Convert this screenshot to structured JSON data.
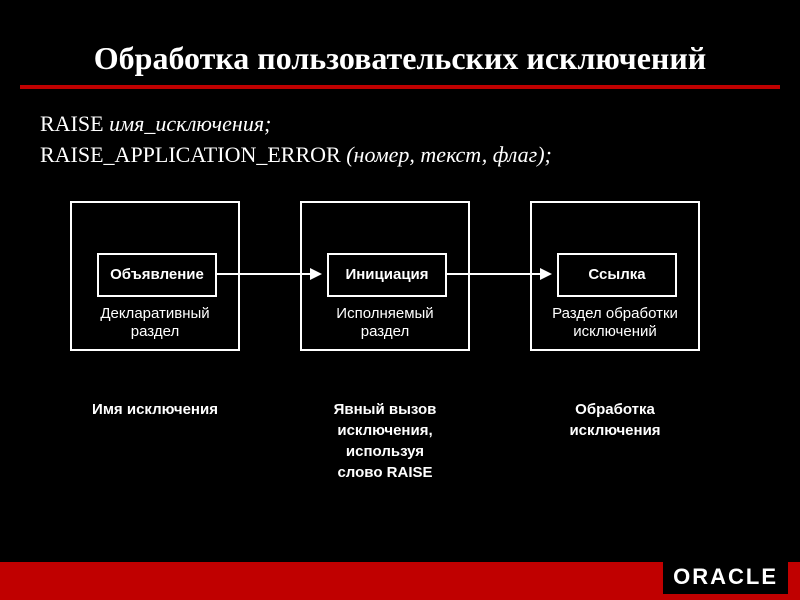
{
  "title": "Обработка пользовательских исключений",
  "code": {
    "line1_keyword": "RAISE ",
    "line1_italic": "имя_исключения;",
    "line2_keyword": "RAISE_APPLICATION_ERROR ",
    "line2_italic": "(номер, текст, флаг);"
  },
  "boxes": [
    {
      "inner": "Объявление",
      "section1": "Декларативный",
      "section2": "раздел"
    },
    {
      "inner": "Инициация",
      "section1": "Исполняемый",
      "section2": "раздел"
    },
    {
      "inner": "Ссылка",
      "section1": "Раздел обработки",
      "section2": "исключений"
    }
  ],
  "captions": [
    "Имя исключения",
    "Явный вызов\nисключения,\nиспользуя\nслово RAISE",
    "Обработка\nисключения"
  ],
  "logo": "ORACLE",
  "colors": {
    "background": "#000000",
    "text": "#ffffff",
    "accent": "#c00000"
  },
  "diagram": {
    "type": "flowchart",
    "box_border_color": "#ffffff",
    "arrow_color": "#ffffff",
    "outer_box_size": [
      170,
      150
    ],
    "inner_box_size": [
      120,
      44
    ]
  }
}
